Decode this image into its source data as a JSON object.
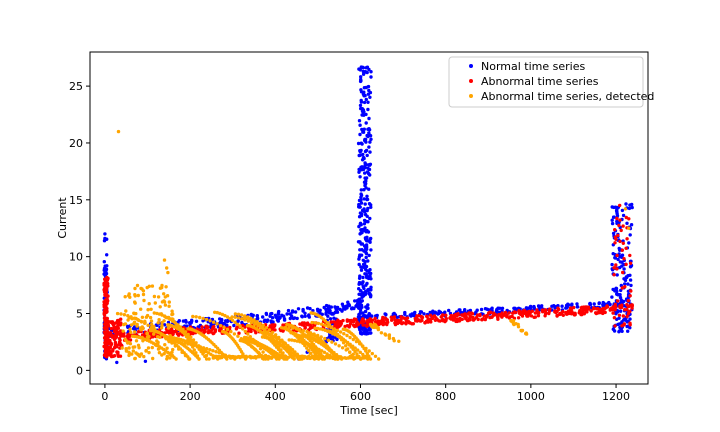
{
  "chart_data": {
    "type": "scatter",
    "xlabel": "Time [sec]",
    "ylabel": "Current",
    "xlim": [
      -35,
      1275
    ],
    "ylim": [
      -1.2,
      28.0
    ],
    "xticks": [
      0,
      200,
      400,
      600,
      800,
      1000,
      1200
    ],
    "yticks": [
      0,
      5,
      10,
      15,
      20,
      25
    ],
    "grid": false,
    "legend_position": "top-right",
    "series": [
      {
        "name": "Normal time series",
        "color": "#0000ff",
        "segments": [
          {
            "kind": "line",
            "x": [
              0,
              200,
              400,
              540,
              600
            ],
            "y": [
              3.4,
              4.0,
              4.7,
              5.4,
              6.0
            ],
            "n": 260,
            "spread": 0.45
          },
          {
            "kind": "line",
            "x": [
              600,
              800,
              1000,
              1200,
              1240
            ],
            "y": [
              4.7,
              5.0,
              5.4,
              5.8,
              5.9
            ],
            "n": 200,
            "spread": 0.25
          },
          {
            "kind": "column",
            "x": [
              595,
              625
            ],
            "y": [
              3.2,
              26.7
            ],
            "n": 340
          },
          {
            "kind": "column",
            "x": [
              1190,
              1238
            ],
            "y": [
              3.4,
              14.8
            ],
            "n": 170
          },
          {
            "kind": "column",
            "x": [
              515,
              545
            ],
            "y": [
              2.6,
              5.8
            ],
            "n": 40
          },
          {
            "kind": "column",
            "x": [
              -2,
              6
            ],
            "y": [
              1.0,
              12.0
            ],
            "n": 50
          }
        ],
        "points": [
          [
            0,
            12.0
          ],
          [
            0,
            11.6
          ],
          [
            28,
            0.7
          ],
          [
            95,
            0.8
          ],
          [
            455,
            1.0
          ],
          [
            475,
            1.6
          ],
          [
            520,
            2.5
          ]
        ]
      },
      {
        "name": "Abnormal time series",
        "color": "#ff0000",
        "segments": [
          {
            "kind": "column",
            "x": [
              -2,
              8
            ],
            "y": [
              1.2,
              8.2
            ],
            "n": 140
          },
          {
            "kind": "line",
            "x": [
              0,
              200,
              400,
              600,
              800,
              1000,
              1200,
              1240
            ],
            "y": [
              2.8,
              3.5,
              3.7,
              4.2,
              4.6,
              5.0,
              5.4,
              5.5
            ],
            "n": 720,
            "spread": 0.35
          },
          {
            "kind": "column",
            "x": [
              1195,
              1235
            ],
            "y": [
              3.8,
              15.0
            ],
            "n": 50
          },
          {
            "kind": "column",
            "x": [
              0,
              40
            ],
            "y": [
              1.2,
              4.5
            ],
            "n": 90
          }
        ]
      },
      {
        "name": "Abnormal time series, detected",
        "color": "#ffa500",
        "segments": [
          {
            "kind": "curves",
            "x": [
              20,
              600
            ],
            "y": [
              1.0,
              5.5
            ],
            "n": 24,
            "len": 150,
            "per": 22
          },
          {
            "kind": "curves",
            "x": [
              230,
              620
            ],
            "y": [
              1.0,
              4.0
            ],
            "n": 14,
            "len": 90,
            "per": 18
          },
          {
            "kind": "column",
            "x": [
              40,
              160
            ],
            "y": [
              1.0,
              7.5
            ],
            "n": 160
          },
          {
            "kind": "line",
            "x": [
              240,
              620
            ],
            "y": [
              1.15,
              1.15
            ],
            "n": 160,
            "spread": 0.1
          },
          {
            "kind": "line",
            "x": [
              620,
              690
            ],
            "y": [
              4.2,
              2.4
            ],
            "n": 20,
            "spread": 0.2
          },
          {
            "kind": "line",
            "x": [
              950,
              990
            ],
            "y": [
              4.5,
              3.2
            ],
            "n": 18,
            "spread": 0.2
          }
        ],
        "points": [
          [
            32,
            21.0
          ],
          [
            140,
            9.7
          ],
          [
            148,
            8.6
          ],
          [
            145,
            9.0
          ],
          [
            1222,
            14.2
          ],
          [
            1230,
            12.5
          ]
        ]
      }
    ]
  }
}
